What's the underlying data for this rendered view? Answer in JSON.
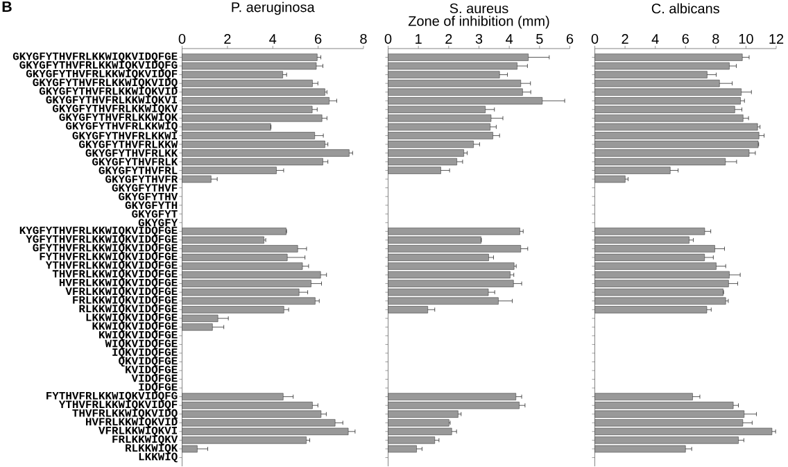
{
  "chart_data": [
    {
      "type": "bar",
      "orientation": "horizontal",
      "title": "P. aeruginosa",
      "annotations": [
        "B"
      ],
      "color": "#999999",
      "categories": [
        "GKYGFYTHVFRLKKWIQKVIDQFGE",
        "GKYGFYTHVFRLKKWIQKVIDQFG",
        "GKYGFYTHVFRLKKWIQKVIDQF",
        "GKYGFYTHVFRLKKWIQKVIDQ",
        "GKYGFYTHVFRLKKWIQKVID",
        "GKYGFYTHVFRLKKWIQKVI",
        "GKYGFYTHVFRLKKWIQKV",
        "GKYGFYTHVFRLKKWIQK",
        "GKYGFYTHVFRLKKWIQ",
        "GKYGFYTHVFRLKKWI",
        "GKYGFYTHVFRLKKW",
        "GKYGFYTHVFRLKK",
        "GKYGFYTHVFRLK",
        "GKYGFYTHVFRL",
        "GKYGFYTHVFR",
        "GKYGFYTHVF",
        "GKYGFYTHV",
        "GKYGFYTH",
        "GKYGFYT",
        "GKYGFY",
        "KYGFYTHVFRLKKWIQKVIDQFGE",
        "YGFYTHVFRLKKWIQKVIDQFGE",
        "GFYTHVFRLKKWIQKVIDQFGE",
        "FYTHVFRLKKWIQKVIDQFGE",
        "YTHVFRLKKWIQKVIDQFGE",
        "THVFRLKKWIQKVIDQFGE",
        "HVFRLKKWIQKVIDQFGE",
        "VFRLKKWIQKVIDQFGE",
        "FRLKKWIQKVIDQFGE",
        "RLKKWIQKVIDQFGE",
        "LKKWIQKVIDQFGE",
        "KKWIQKVIDQFGE",
        "KWIQKVIDQFGE",
        "WIQKVIDQFGE",
        "IQKVIDQFGE",
        "QKVIDQFGE",
        "KVIDQFGE",
        "VIDQFGE",
        "IDQFGE",
        "FYTHVFRLKKWIQKVIDQFG",
        "YTHVFRLKKWIQKVIDQF",
        "THVFRLKKWIQKVIDQ",
        "HVFRLKKWIQKVID",
        "VFRLKKWIQKVI",
        "FRLKKWIQKV",
        "RLKKWIQK",
        "LKKWIQ"
      ],
      "values": [
        5.96,
        5.92,
        4.44,
        5.75,
        6.3,
        6.49,
        5.74,
        6.17,
        3.91,
        5.85,
        6.3,
        7.37,
        6.21,
        4.16,
        1.28,
        null,
        null,
        null,
        null,
        null,
        4.59,
        3.61,
        5.1,
        4.64,
        5.31,
        6.11,
        5.69,
        5.16,
        5.87,
        4.49,
        1.58,
        1.34,
        null,
        null,
        null,
        null,
        null,
        null,
        null,
        4.46,
        5.75,
        6.13,
        6.75,
        7.33,
        5.48,
        0.67,
        null
      ],
      "errors": [
        [
          5.96,
          6.12
        ],
        [
          5.92,
          6.21
        ],
        [
          4.44,
          4.61
        ],
        [
          5.75,
          5.99
        ],
        [
          6.3,
          6.39
        ],
        [
          6.49,
          6.82
        ],
        [
          5.74,
          5.96
        ],
        [
          6.17,
          6.39
        ],
        [
          3.91,
          3.92
        ],
        [
          5.85,
          6.23
        ],
        [
          6.3,
          6.43
        ],
        [
          7.37,
          7.52
        ],
        [
          6.21,
          6.43
        ],
        [
          4.16,
          4.48
        ],
        [
          1.28,
          1.55
        ],
        null,
        null,
        null,
        null,
        null,
        [
          4.59,
          4.61
        ],
        [
          3.61,
          3.69
        ],
        [
          5.1,
          5.49
        ],
        [
          4.64,
          5.42
        ],
        [
          5.31,
          5.58
        ],
        [
          6.11,
          6.37
        ],
        [
          5.69,
          6.15
        ],
        [
          5.16,
          5.54
        ],
        [
          5.87,
          6.05
        ],
        [
          4.49,
          4.7
        ],
        [
          1.58,
          2.04
        ],
        [
          1.34,
          1.84
        ],
        null,
        null,
        null,
        null,
        null,
        null,
        null,
        [
          4.46,
          4.9
        ],
        [
          5.75,
          5.99
        ],
        [
          6.13,
          6.36
        ],
        [
          6.75,
          7.09
        ],
        [
          7.33,
          7.63
        ],
        [
          5.48,
          5.63
        ],
        [
          0.67,
          1.13
        ],
        null
      ],
      "xlim": [
        0,
        8
      ],
      "xticks": [
        0,
        2,
        4,
        6,
        8
      ]
    },
    {
      "type": "bar",
      "orientation": "horizontal",
      "title": "S. aureus",
      "xlabel": "Zone of inhibition (mm)",
      "color": "#999999",
      "tick_labels": "x",
      "categories": [
        null,
        null,
        null,
        null,
        null,
        null,
        null,
        null,
        null,
        null,
        null,
        null,
        null,
        null,
        null,
        null,
        null,
        null,
        null,
        null,
        null,
        null,
        null,
        null,
        null,
        null,
        null,
        null,
        null,
        null,
        null,
        null,
        null,
        null,
        null,
        null,
        null,
        null,
        null,
        null,
        null,
        null,
        null,
        null,
        null,
        null,
        null
      ],
      "values": [
        4.63,
        4.26,
        3.68,
        4.38,
        4.44,
        5.09,
        3.21,
        3.4,
        3.37,
        3.46,
        2.82,
        2.5,
        2.27,
        1.74,
        null,
        null,
        null,
        null,
        null,
        null,
        4.35,
        3.07,
        4.38,
        3.32,
        4.16,
        4.03,
        4.14,
        3.31,
        3.64,
        1.31,
        null,
        null,
        null,
        null,
        null,
        null,
        null,
        null,
        null,
        4.22,
        4.33,
        2.31,
        2.01,
        2.1,
        1.54,
        0.94,
        null
      ],
      "errors": [
        [
          4.63,
          5.32
        ],
        [
          4.26,
          4.6
        ],
        [
          3.68,
          3.94
        ],
        [
          4.38,
          4.7
        ],
        [
          4.44,
          4.71
        ],
        [
          5.09,
          5.83
        ],
        [
          3.21,
          3.51
        ],
        [
          3.4,
          3.79
        ],
        [
          3.37,
          3.57
        ],
        [
          3.46,
          3.68
        ],
        [
          2.82,
          3.02
        ],
        [
          2.5,
          2.61
        ],
        [
          2.27,
          2.46
        ],
        [
          1.74,
          2.03
        ],
        null,
        null,
        null,
        null,
        null,
        null,
        [
          4.35,
          4.46
        ],
        [
          3.07,
          3.08
        ],
        [
          4.38,
          4.61
        ],
        [
          3.32,
          3.48
        ],
        [
          4.16,
          4.23
        ],
        [
          4.03,
          4.15
        ],
        [
          4.14,
          4.41
        ],
        [
          3.31,
          3.52
        ],
        [
          3.64,
          4.1
        ],
        [
          1.31,
          1.54
        ],
        null,
        null,
        null,
        null,
        null,
        null,
        null,
        null,
        null,
        [
          4.22,
          4.41
        ],
        [
          4.33,
          4.52
        ],
        [
          2.31,
          2.41
        ],
        [
          2.01,
          2.05
        ],
        [
          2.1,
          2.26
        ],
        [
          1.54,
          1.68
        ],
        [
          0.94,
          1.12
        ],
        null
      ],
      "xlim": [
        0,
        6
      ],
      "xticks": [
        0,
        1,
        2,
        3,
        4,
        5,
        6
      ]
    },
    {
      "type": "bar",
      "orientation": "horizontal",
      "title": "C. albicans",
      "color": "#999999",
      "tick_labels": "x",
      "categories": [
        null,
        null,
        null,
        null,
        null,
        null,
        null,
        null,
        null,
        null,
        null,
        null,
        null,
        null,
        null,
        null,
        null,
        null,
        null,
        null,
        null,
        null,
        null,
        null,
        null,
        null,
        null,
        null,
        null,
        null,
        null,
        null,
        null,
        null,
        null,
        null,
        null,
        null,
        null,
        null,
        null,
        null,
        null,
        null,
        null,
        null,
        null
      ],
      "values": [
        9.76,
        8.9,
        7.43,
        8.25,
        9.69,
        9.64,
        9.26,
        9.81,
        10.77,
        10.86,
        10.81,
        10.21,
        8.64,
        4.99,
        2.01,
        null,
        null,
        null,
        null,
        null,
        7.27,
        6.24,
        7.94,
        7.26,
        8.03,
        8.9,
        8.85,
        8.49,
        8.66,
        7.41,
        null,
        null,
        null,
        null,
        null,
        null,
        null,
        null,
        null,
        6.47,
        9.16,
        9.88,
        9.79,
        11.72,
        9.5,
        6.0,
        null
      ],
      "errors": [
        [
          9.76,
          10.21
        ],
        [
          8.9,
          9.36
        ],
        [
          7.43,
          8.03
        ],
        [
          8.25,
          9.09
        ],
        [
          9.69,
          10.36
        ],
        [
          9.64,
          9.9
        ],
        [
          9.26,
          9.73
        ],
        [
          9.81,
          10.17
        ],
        [
          10.77,
          10.93
        ],
        [
          10.86,
          11.2
        ],
        [
          10.81,
          10.84
        ],
        [
          10.21,
          10.62
        ],
        [
          8.64,
          9.38
        ],
        [
          4.99,
          5.51
        ],
        [
          2.01,
          2.2
        ],
        null,
        null,
        null,
        null,
        null,
        [
          7.27,
          7.67
        ],
        [
          6.24,
          6.52
        ],
        [
          7.94,
          8.58
        ],
        [
          7.26,
          7.84
        ],
        [
          8.03,
          8.66
        ],
        [
          8.9,
          9.62
        ],
        [
          8.85,
          9.45
        ],
        [
          8.49,
          8.52
        ],
        [
          8.66,
          8.83
        ],
        [
          7.41,
          7.7
        ],
        null,
        null,
        null,
        null,
        null,
        null,
        null,
        null,
        null,
        [
          6.47,
          6.95
        ],
        [
          9.16,
          9.5
        ],
        [
          9.88,
          10.69
        ],
        [
          9.79,
          10.41
        ],
        [
          11.72,
          11.96
        ],
        [
          9.5,
          9.86
        ],
        [
          6.0,
          6.41
        ],
        null
      ],
      "xlim": [
        0,
        12
      ],
      "xticks": [
        0,
        2,
        4,
        6,
        8,
        10,
        12
      ]
    }
  ]
}
